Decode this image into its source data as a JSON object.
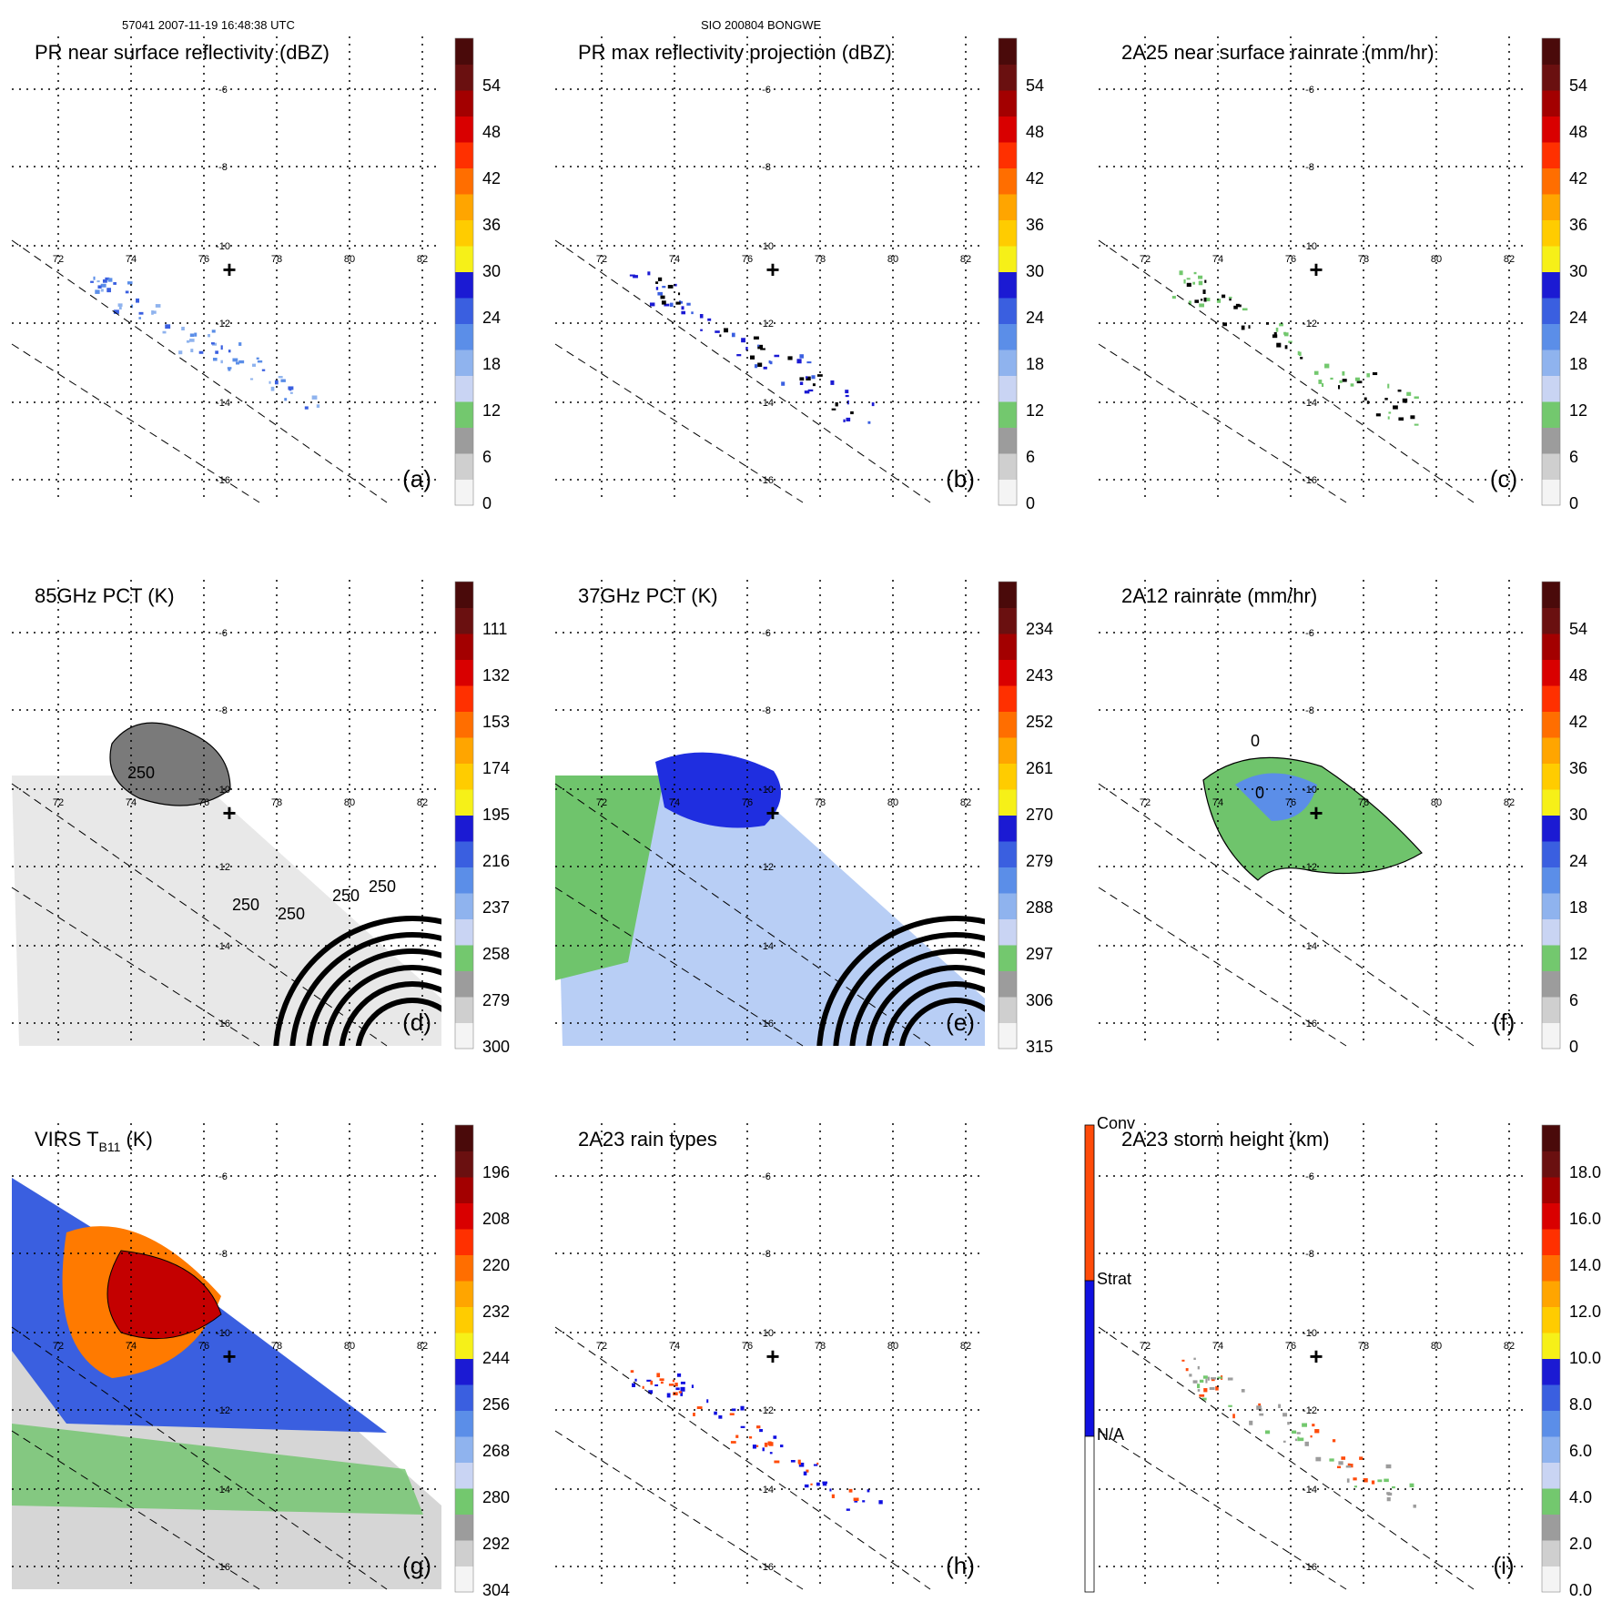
{
  "header": {
    "left": "57041 2007-11-19 16:48:38 UTC",
    "center": "SIO 200804 BONGWE"
  },
  "map": {
    "lon_ticks": [
      "72",
      "74",
      "76",
      "78",
      "80",
      "82"
    ],
    "lat_ticks": [
      "-6",
      "-8",
      "-10",
      "-12",
      "-14",
      "-16"
    ],
    "site_marker": "+"
  },
  "palettes": {
    "standard": [
      "#f4f4f4",
      "#cfcfcf",
      "#9c9c9c",
      "#73c86e",
      "#c9d4f3",
      "#8fb3ee",
      "#5b8ee8",
      "#3a5fe0",
      "#1b1ad3",
      "#f6f018",
      "#ffcc00",
      "#ffa500",
      "#ff6e00",
      "#ff3000",
      "#d90000",
      "#a30000",
      "#6a1010",
      "#4a0a0a"
    ],
    "rain_types": [
      "#ffffff",
      "#1010e0",
      "#ff4b0a"
    ],
    "gray_field": "#e6e6e6",
    "green_field": "#6fc46c",
    "light_blue_field": "#b8cef5",
    "blue_field": "#1b2be0"
  },
  "chart_data": [
    {
      "type": "heatmap",
      "panel_label": "(a)",
      "title": "PR near surface reflectivity (dBZ)",
      "units": "dBZ",
      "colorbar_ticks": [
        "0",
        "6",
        "12",
        "18",
        "24",
        "30",
        "36",
        "42",
        "48",
        "54"
      ],
      "colorbar_range": [
        0,
        60
      ]
    },
    {
      "type": "heatmap",
      "panel_label": "(b)",
      "title": "PR max reflectivity projection (dBZ)",
      "units": "dBZ",
      "colorbar_ticks": [
        "0",
        "6",
        "12",
        "18",
        "24",
        "30",
        "36",
        "42",
        "48",
        "54"
      ],
      "colorbar_range": [
        0,
        60
      ]
    },
    {
      "type": "heatmap",
      "panel_label": "(c)",
      "title": "2A25 near surface rainrate (mm/hr)",
      "units": "mm/hr",
      "colorbar_ticks": [
        "0",
        "6",
        "12",
        "18",
        "24",
        "30",
        "36",
        "42",
        "48",
        "54"
      ],
      "colorbar_range": [
        0,
        60
      ]
    },
    {
      "type": "heatmap",
      "panel_label": "(d)",
      "title": "85GHz PCT (K)",
      "units": "K",
      "colorbar_ticks": [
        "300",
        "279",
        "258",
        "237",
        "216",
        "195",
        "174",
        "153",
        "132",
        "111"
      ],
      "colorbar_range": [
        300,
        90
      ],
      "contour_labels": [
        "250",
        "250",
        "250",
        "250",
        "250"
      ]
    },
    {
      "type": "heatmap",
      "panel_label": "(e)",
      "title": "37GHz PCT (K)",
      "units": "K",
      "colorbar_ticks": [
        "315",
        "306",
        "297",
        "288",
        "279",
        "270",
        "261",
        "252",
        "243",
        "234"
      ],
      "colorbar_range": [
        315,
        225
      ]
    },
    {
      "type": "heatmap",
      "panel_label": "(f)",
      "title": "2A12 rainrate (mm/hr)",
      "units": "mm/hr",
      "colorbar_ticks": [
        "0",
        "6",
        "12",
        "18",
        "24",
        "30",
        "36",
        "42",
        "48",
        "54"
      ],
      "colorbar_range": [
        0,
        60
      ],
      "contour_labels": [
        "0",
        "0"
      ]
    },
    {
      "type": "heatmap",
      "panel_label": "(g)",
      "title": "VIRS T",
      "title_sub": "B11",
      "title_suffix": " (K)",
      "units": "K",
      "colorbar_ticks": [
        "304",
        "292",
        "280",
        "268",
        "256",
        "244",
        "232",
        "220",
        "208",
        "196"
      ],
      "colorbar_range": [
        304,
        184
      ]
    },
    {
      "type": "heatmap",
      "panel_label": "(h)",
      "title": "2A23 rain types",
      "units": "",
      "colorbar_categories": [
        "N/A",
        "Strat",
        "Conv"
      ]
    },
    {
      "type": "heatmap",
      "panel_label": "(i)",
      "title": "2A23 storm height (km)",
      "units": "km",
      "colorbar_ticks": [
        "0.0",
        "2.0",
        "4.0",
        "6.0",
        "8.0",
        "10.0",
        "12.0",
        "14.0",
        "16.0",
        "18.0"
      ],
      "colorbar_range": [
        0,
        20
      ]
    }
  ]
}
